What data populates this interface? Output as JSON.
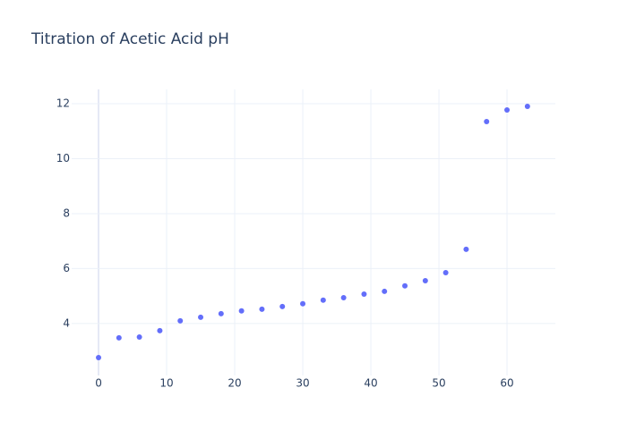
{
  "chart_data": {
    "type": "scatter",
    "title": "Titration of Acetic Acid pH",
    "series": [
      {
        "color": "#636efa",
        "x": [
          0,
          3,
          6,
          9,
          12,
          15,
          18,
          21,
          24,
          27,
          30,
          33,
          36,
          39,
          42,
          45,
          48,
          51,
          54,
          57,
          60,
          63
        ],
        "values": [
          2.76,
          3.48,
          3.51,
          3.74,
          4.1,
          4.23,
          4.36,
          4.46,
          4.52,
          4.62,
          4.72,
          4.85,
          4.94,
          5.07,
          5.17,
          5.37,
          5.56,
          5.85,
          6.7,
          11.35,
          11.77,
          11.9
        ]
      }
    ],
    "xlim": [
      -3.95,
      67.1
    ],
    "xticks": [
      0,
      10,
      20,
      30,
      40,
      50,
      60
    ],
    "ylim": [
      2.11,
      12.52
    ],
    "yticks": [
      4,
      6,
      8,
      10,
      12
    ],
    "grid": true
  }
}
